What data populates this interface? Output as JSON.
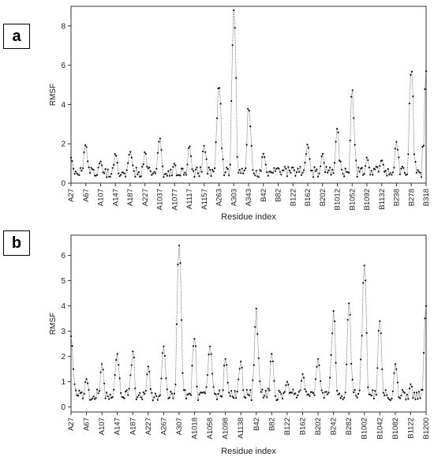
{
  "panels": [
    {
      "label": "a"
    },
    {
      "label": "b"
    }
  ],
  "chart_data": [
    {
      "type": "line",
      "xlabel": "Residue index",
      "ylabel": "RMSF",
      "ylim": [
        0,
        9
      ],
      "yticks": [
        0,
        2,
        4,
        6,
        8
      ],
      "xticklabels": [
        "A27",
        "A67",
        "A107",
        "A147",
        "A187",
        "A227",
        "A1037",
        "A1077",
        "A1117",
        "A1157",
        "A263",
        "A303",
        "A343",
        "B42",
        "B82",
        "B122",
        "B162",
        "B202",
        "B1012",
        "B1052",
        "B1092",
        "B1132",
        "B238",
        "B278",
        "B318"
      ],
      "n_points": 300,
      "baseline": 0.6,
      "peaks": [
        {
          "tick": "A27",
          "value": 1.3
        },
        {
          "tick": "A67",
          "value": 2.0
        },
        {
          "tick": "A107",
          "value": 1.1
        },
        {
          "tick": "A147",
          "value": 1.5
        },
        {
          "tick": "A187",
          "value": 1.6
        },
        {
          "tick": "A227",
          "value": 1.6
        },
        {
          "tick": "A1037",
          "value": 2.3
        },
        {
          "tick": "A1077",
          "value": 1.0
        },
        {
          "tick": "A1117",
          "value": 1.9
        },
        {
          "tick": "A1157",
          "value": 1.9
        },
        {
          "tick": "A263",
          "value": 5.1
        },
        {
          "tick": "A303",
          "value": 8.8
        },
        {
          "tick": "A343",
          "value": 3.9
        },
        {
          "tick": "B42",
          "value": 1.5
        },
        {
          "tick": "B82",
          "value": 0.8
        },
        {
          "tick": "B122",
          "value": 0.8
        },
        {
          "tick": "B162",
          "value": 2.0
        },
        {
          "tick": "B202",
          "value": 1.5
        },
        {
          "tick": "B1012",
          "value": 2.8
        },
        {
          "tick": "B1052",
          "value": 4.8
        },
        {
          "tick": "B1092",
          "value": 1.3
        },
        {
          "tick": "B1132",
          "value": 1.2
        },
        {
          "tick": "B238",
          "value": 2.1
        },
        {
          "tick": "B278",
          "value": 5.9
        },
        {
          "tick": "B318",
          "value": 5.7
        }
      ]
    },
    {
      "type": "line",
      "xlabel": "Residue index",
      "ylabel": "RMSF",
      "ylim": [
        -0.2,
        6.8
      ],
      "yticks": [
        0,
        1,
        2,
        3,
        4,
        5,
        6
      ],
      "xticklabels": [
        "A27",
        "A67",
        "A107",
        "A147",
        "A187",
        "A227",
        "A267",
        "A307",
        "A1018",
        "A1058",
        "A1098",
        "A1138",
        "B42",
        "B82",
        "B122",
        "B162",
        "B202",
        "B242",
        "B282",
        "B1002",
        "B1042",
        "B1082",
        "B1122",
        "B1200"
      ],
      "n_points": 300,
      "baseline": 0.5,
      "peaks": [
        {
          "tick": "A27",
          "value": 2.8
        },
        {
          "tick": "A67",
          "value": 1.1
        },
        {
          "tick": "A107",
          "value": 1.7
        },
        {
          "tick": "A147",
          "value": 2.1
        },
        {
          "tick": "A187",
          "value": 2.2
        },
        {
          "tick": "A227",
          "value": 1.6
        },
        {
          "tick": "A267",
          "value": 2.4
        },
        {
          "tick": "A307",
          "value": 6.4
        },
        {
          "tick": "A1018",
          "value": 2.7
        },
        {
          "tick": "A1058",
          "value": 2.4
        },
        {
          "tick": "A1098",
          "value": 1.9
        },
        {
          "tick": "A1138",
          "value": 1.8
        },
        {
          "tick": "B42",
          "value": 3.9
        },
        {
          "tick": "B82",
          "value": 2.1
        },
        {
          "tick": "B122",
          "value": 1.0
        },
        {
          "tick": "B162",
          "value": 1.3
        },
        {
          "tick": "B202",
          "value": 1.9
        },
        {
          "tick": "B242",
          "value": 3.8
        },
        {
          "tick": "B282",
          "value": 4.1
        },
        {
          "tick": "B1002",
          "value": 5.6
        },
        {
          "tick": "B1042",
          "value": 3.4
        },
        {
          "tick": "B1082",
          "value": 1.7
        },
        {
          "tick": "B1122",
          "value": 0.9
        },
        {
          "tick": "B1200",
          "value": 4.0
        }
      ]
    }
  ]
}
